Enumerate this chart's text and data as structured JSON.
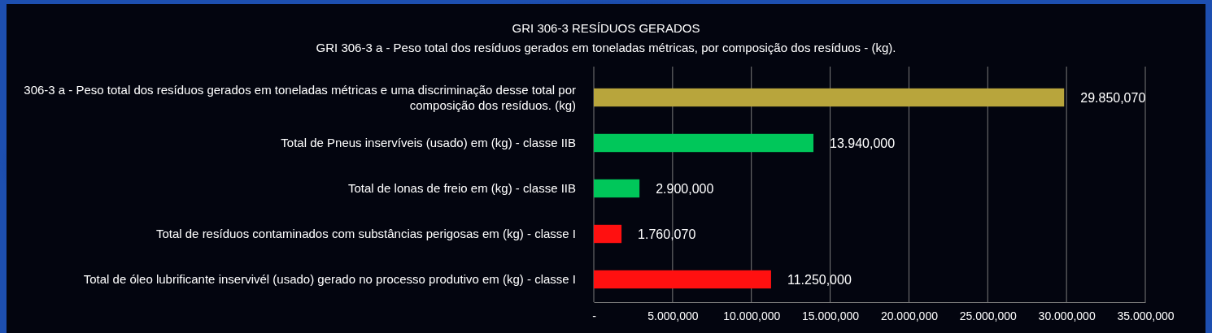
{
  "chart_data": {
    "type": "bar",
    "orientation": "horizontal",
    "title": "GRI 306-3 RESÍDUOS GERADOS",
    "subtitle": "GRI 306-3 a - Peso total dos resíduos gerados em toneladas métricas, por composição dos resíduos - (kg).",
    "categories": [
      "306-3 a - Peso total dos resíduos gerados em toneladas métricas e uma discriminação desse total por composição dos resíduos. (kg)",
      "Total de Pneus inservíveis (usado) em (kg) - classe IIB",
      "Total de lonas de freio em (kg) - classe IIB",
      "Total de resíduos contaminados com substâncias perigosas em (kg) - classe I",
      "Total de óleo lubrificante inservivél (usado) gerado no processo produtivo em (kg) - classe I"
    ],
    "values": [
      29850.07,
      13940,
      2900,
      1760.07,
      11250
    ],
    "colors": [
      "#b8a53c",
      "#00c75a",
      "#00c75a",
      "#ff1010",
      "#ff1010"
    ],
    "value_labels": [
      "29.850,070",
      "13.940,000",
      "2.900,000",
      "1.760,070",
      "11.250,000"
    ],
    "xlim": [
      0,
      35000
    ],
    "xticks": [
      {
        "value": 0,
        "label": "-"
      },
      {
        "value": 5000,
        "label": "5.000,000"
      },
      {
        "value": 10000,
        "label": "10.000,000"
      },
      {
        "value": 15000,
        "label": "15.000,000"
      },
      {
        "value": 20000,
        "label": "20.000,000"
      },
      {
        "value": 25000,
        "label": "25.000,000"
      },
      {
        "value": 30000,
        "label": "30.000,000"
      },
      {
        "value": 35000,
        "label": "35.000,000"
      }
    ],
    "grid": "x"
  }
}
